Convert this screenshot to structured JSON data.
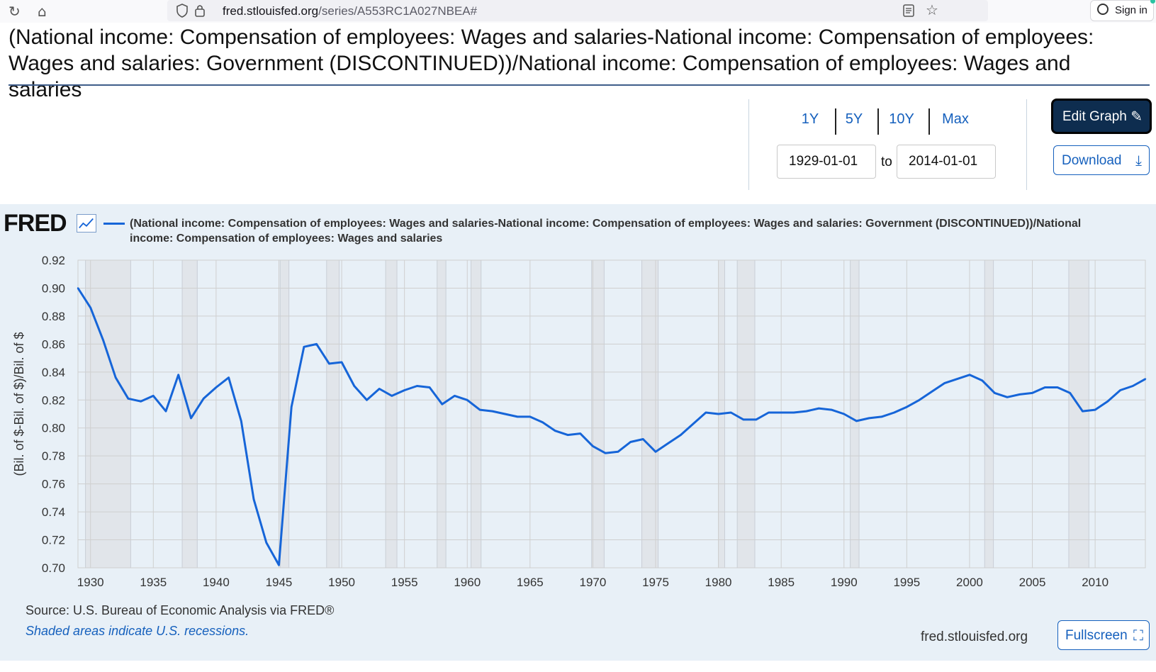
{
  "browser": {
    "url_host": "fred.stlouisfed.org",
    "url_path": "/series/A553RC1A027NBEA#",
    "signin_label": "Sign in",
    "icons": [
      "reload-icon",
      "home-icon",
      "shield-icon",
      "lock-icon",
      "reader-icon",
      "star-icon",
      "account-icon"
    ]
  },
  "page": {
    "title": "(National income: Compensation of employees: Wages and salaries-National income: Compensation of employees: Wages and salaries: Government (DISCONTINUED))/National income: Compensation of employees: Wages and salaries"
  },
  "controls": {
    "ranges": [
      "1Y",
      "5Y",
      "10Y",
      "Max"
    ],
    "start_date": "1929-01-01",
    "to_label": "to",
    "end_date": "2014-01-01",
    "edit_label": "Edit Graph",
    "download_label": "Download",
    "accent_color": "#1560bd",
    "edit_bg_color": "#0e2d4f"
  },
  "chart_header": {
    "logo": "FRED",
    "legend": "(National income: Compensation of employees: Wages and salaries-National income: Compensation of employees: Wages and salaries: Government (DISCONTINUED))/National income: Compensation of employees: Wages and salaries"
  },
  "chart_data": {
    "type": "line",
    "title": "",
    "xlabel": "",
    "ylabel": "(Bil. of $-Bil. of $)/Bil. of $",
    "ylim": [
      0.7,
      0.92
    ],
    "xlim": [
      1929,
      2014
    ],
    "yticks": [
      "0.70",
      "0.72",
      "0.74",
      "0.76",
      "0.78",
      "0.80",
      "0.82",
      "0.84",
      "0.86",
      "0.88",
      "0.90",
      "0.92"
    ],
    "xticks": [
      "1930",
      "1935",
      "1940",
      "1945",
      "1950",
      "1955",
      "1960",
      "1965",
      "1970",
      "1975",
      "1980",
      "1985",
      "1990",
      "1995",
      "2000",
      "2005",
      "2010"
    ],
    "grid": true,
    "line_color": "#1665d8",
    "recession_color": "#e1e5ea",
    "recessions": [
      [
        1929.6,
        1933.2
      ],
      [
        1937.3,
        1938.5
      ],
      [
        1945.1,
        1945.8
      ],
      [
        1948.8,
        1949.8
      ],
      [
        1953.5,
        1954.4
      ],
      [
        1957.6,
        1958.3
      ],
      [
        1960.3,
        1961.1
      ],
      [
        1969.9,
        1970.9
      ],
      [
        1973.9,
        1975.2
      ],
      [
        1980.0,
        1980.5
      ],
      [
        1981.5,
        1982.9
      ],
      [
        1990.5,
        1991.2
      ],
      [
        2001.2,
        2001.9
      ],
      [
        2007.9,
        2009.5
      ]
    ],
    "series": [
      {
        "name": "(National income: Compensation of employees: Wages and salaries-National income: Compensation of employees: Wages and salaries: Government (DISCONTINUED))/National income: Compensation of employees: Wages and salaries",
        "x": [
          1929,
          1930,
          1931,
          1932,
          1933,
          1934,
          1935,
          1936,
          1937,
          1938,
          1939,
          1940,
          1941,
          1942,
          1943,
          1944,
          1945,
          1946,
          1947,
          1948,
          1949,
          1950,
          1951,
          1952,
          1953,
          1954,
          1955,
          1956,
          1957,
          1958,
          1959,
          1960,
          1961,
          1962,
          1963,
          1964,
          1965,
          1966,
          1967,
          1968,
          1969,
          1970,
          1971,
          1972,
          1973,
          1974,
          1975,
          1976,
          1977,
          1978,
          1979,
          1980,
          1981,
          1982,
          1983,
          1984,
          1985,
          1986,
          1987,
          1988,
          1989,
          1990,
          1991,
          1992,
          1993,
          1994,
          1995,
          1996,
          1997,
          1998,
          1999,
          2000,
          2001,
          2002,
          2003,
          2004,
          2005,
          2006,
          2007,
          2008,
          2009,
          2010,
          2011,
          2012,
          2013,
          2014
        ],
        "values": [
          0.9,
          0.886,
          0.863,
          0.836,
          0.821,
          0.819,
          0.823,
          0.812,
          0.838,
          0.807,
          0.821,
          0.829,
          0.836,
          0.805,
          0.749,
          0.718,
          0.702,
          0.815,
          0.858,
          0.86,
          0.846,
          0.847,
          0.83,
          0.82,
          0.828,
          0.823,
          0.827,
          0.83,
          0.829,
          0.817,
          0.823,
          0.82,
          0.813,
          0.812,
          0.81,
          0.808,
          0.808,
          0.804,
          0.798,
          0.795,
          0.796,
          0.787,
          0.782,
          0.783,
          0.79,
          0.792,
          0.783,
          0.789,
          0.795,
          0.803,
          0.811,
          0.81,
          0.811,
          0.806,
          0.806,
          0.811,
          0.811,
          0.811,
          0.812,
          0.814,
          0.813,
          0.81,
          0.805,
          0.807,
          0.808,
          0.811,
          0.815,
          0.82,
          0.826,
          0.832,
          0.835,
          0.838,
          0.834,
          0.825,
          0.822,
          0.824,
          0.825,
          0.829,
          0.829,
          0.825,
          0.812,
          0.813,
          0.819,
          0.827,
          0.83,
          0.835
        ]
      }
    ]
  },
  "footer": {
    "source": "Source: U.S. Bureau of Economic Analysis via FRED®",
    "recession_note": "Shaded areas indicate U.S. recessions.",
    "site": "fred.stlouisfed.org",
    "fullscreen_label": "Fullscreen"
  }
}
